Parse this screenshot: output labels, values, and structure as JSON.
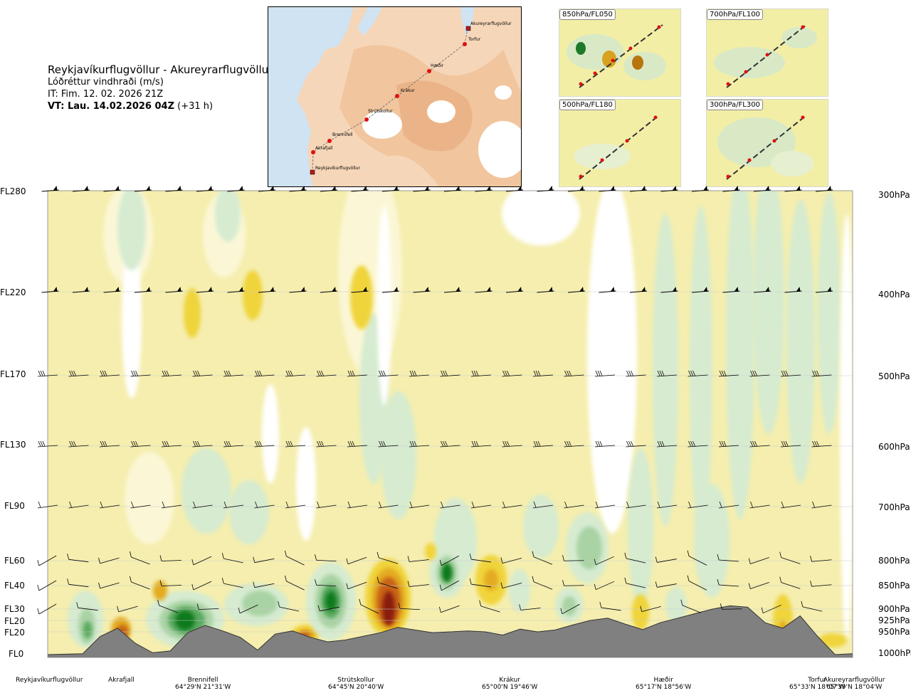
{
  "header": {
    "title": "Reykjavíkurflugvöllur - Akureyrarflugvöllur",
    "subtitle": "Lóðréttur vindhraði (m/s)",
    "issue_time": "IT: Fim. 12. 02. 2026 21Z",
    "valid_prefix": "VT: Lau. 14.02.2026 04Z",
    "valid_suffix": "(+31 h)"
  },
  "route_map": {
    "waypoints": [
      "Akureyrarflugvöllur",
      "Torfur",
      "Hæðir",
      "Krákur",
      "Strútskollur",
      "Brennifell",
      "Akrafjall",
      "Reykjavíkurflugvöllur"
    ]
  },
  "insets": [
    {
      "label": "850hPa/FL050"
    },
    {
      "label": "700hPa/FL100"
    },
    {
      "label": "500hPa/FL180"
    },
    {
      "label": "300hPa/FL300"
    }
  ],
  "levels": [
    {
      "fl": "FL280",
      "hpa": "300hPa"
    },
    {
      "fl": "FL220",
      "hpa": "400hPa"
    },
    {
      "fl": "FL170",
      "hpa": "500hPa"
    },
    {
      "fl": "FL130",
      "hpa": "600hPa"
    },
    {
      "fl": "FL90",
      "hpa": "700hPa"
    },
    {
      "fl": "FL60",
      "hpa": "800hPa"
    },
    {
      "fl": "FL40",
      "hpa": "850hPa"
    },
    {
      "fl": "FL30",
      "hpa": "900hPa"
    },
    {
      "fl": "FL20",
      "hpa": "925hPa"
    },
    {
      "fl": "FL20",
      "hpa": "950hPa"
    },
    {
      "fl": "FL0",
      "hpa": "1000hPa"
    }
  ],
  "bottom_places": [
    {
      "name": "Reykjavíkurflugvöllur",
      "coord": ""
    },
    {
      "name": "Akrafjall",
      "coord": ""
    },
    {
      "name": "Brennifell",
      "coord": "64°29'N 21°31'W"
    },
    {
      "name": "Strútskollur",
      "coord": "64°45'N 20°40'W"
    },
    {
      "name": "Krákur",
      "coord": "65°00'N 19°46'W"
    },
    {
      "name": "Hæðir",
      "coord": "65°17'N 18°56'W"
    },
    {
      "name": "Torfur",
      "coord": "65°33'N 18°07'W"
    },
    {
      "name": "Akureyrarflugvöllur",
      "coord": "65°39'N 18°04'W"
    }
  ],
  "colors": {
    "neutral": "#f5eeae",
    "neutral_light": "#fbf7d6",
    "near_zero": "#ffffff",
    "down_weak": "#d6ebd0",
    "down_mid": "#a9d3a4",
    "down_strong": "#5aa85f",
    "down_max": "#0d7a1b",
    "up_weak": "#f0d43a",
    "up_mid": "#e3ab22",
    "up_strong": "#c76414",
    "up_max": "#8a1a0e",
    "terrain": "#808080"
  },
  "chart_data": {
    "type": "heatmap",
    "title": "Lóðréttur vindhraði (m/s)",
    "xlabel": "",
    "ylabel": "",
    "y_levels_hpa": [
      300,
      400,
      500,
      600,
      700,
      800,
      850,
      900,
      925,
      950,
      1000
    ],
    "y_levels_fl": [
      "FL280",
      "FL220",
      "FL170",
      "FL130",
      "FL90",
      "FL60",
      "FL40",
      "FL30",
      "FL20",
      "FL20",
      "FL0"
    ],
    "x_waypoints": [
      "Reykjavíkurflugvöllur",
      "Akrafjall",
      "Brennifell",
      "Strútskollur",
      "Krákur",
      "Hæðir",
      "Torfur",
      "Akureyrarflugvöllur"
    ],
    "terrain_profile_hpa": [
      1000,
      999,
      998,
      960,
      942,
      975,
      996,
      992,
      952,
      936,
      948,
      962,
      990,
      955,
      948,
      962,
      972,
      968,
      960,
      952,
      940,
      946,
      952,
      950,
      948,
      950,
      957,
      944,
      950,
      946,
      935,
      925,
      920,
      933,
      945,
      930,
      920,
      910,
      900,
      893,
      896,
      930,
      942,
      915,
      960,
      1000,
      998
    ]
  }
}
